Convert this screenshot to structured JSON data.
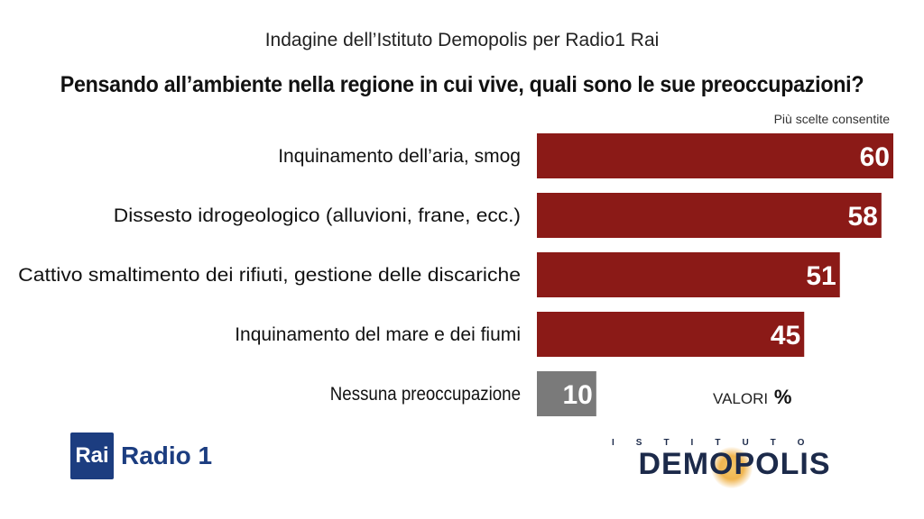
{
  "header": {
    "subtitle": "Indagine dell’Istituto Demopolis per Radio1 Rai",
    "title": "Pensando all’ambiente nella regione in cui vive, quali sono le sue preoccupazioni?",
    "note": "Più scelte consentite"
  },
  "chart_data": {
    "type": "bar",
    "orientation": "horizontal",
    "categories": [
      "Inquinamento dell’aria, smog",
      "Dissesto idrogeologico (alluvioni, frane, ecc.)",
      "Cattivo smaltimento dei rifiuti, gestione delle discariche",
      "Inquinamento del mare e dei fiumi",
      "Nessuna preoccupazione"
    ],
    "values": [
      60,
      58,
      51,
      45,
      10
    ],
    "bar_colors": [
      "#8b1a17",
      "#8b1a17",
      "#8b1a17",
      "#8b1a17",
      "#7a7a7a"
    ],
    "xlim": [
      0,
      60
    ],
    "grid": false,
    "unit_label": "VALORI",
    "unit_symbol": "%"
  },
  "logos": {
    "rai_box": "Rai",
    "rai_radio": "Radio 1",
    "demopolis_top": "ISTITUTO",
    "demopolis_main": "DEMOPOLIS"
  }
}
